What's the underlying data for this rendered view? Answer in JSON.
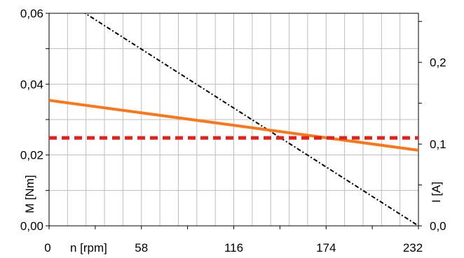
{
  "chart_data": {
    "type": "line",
    "x_axis": {
      "label": "n [rpm]",
      "range": [
        0,
        232
      ],
      "ticks": [
        0,
        58,
        116,
        174,
        232
      ],
      "tick_labels": [
        "0",
        "58",
        "116",
        "174",
        "232"
      ]
    },
    "y_left": {
      "label": "M [Nm]",
      "range": [
        0,
        0.06
      ],
      "ticks": [
        0,
        0.02,
        0.04,
        0.06
      ],
      "tick_labels": [
        "0,00",
        "0,02",
        "0,04",
        "0,06"
      ]
    },
    "y_right": {
      "label": "I [A]",
      "range": [
        0,
        0.26
      ],
      "ticks": [
        0,
        0.1,
        0.2
      ],
      "tick_labels": [
        "0,0",
        "0,1",
        "0,2"
      ]
    },
    "grid": true,
    "series": [
      {
        "axis": "left",
        "style": "dash-dot",
        "color": "#000000",
        "x": [
          0,
          232
        ],
        "y": [
          0.0665,
          0.0
        ]
      },
      {
        "axis": "right",
        "style": "solid",
        "color": "#ff7518",
        "x": [
          0,
          232
        ],
        "y": [
          0.1535,
          0.0925
        ]
      },
      {
        "axis": "right",
        "style": "dashed",
        "color": "#e4211c",
        "x": [
          0,
          232
        ],
        "y": [
          0.1075,
          0.1075
        ]
      }
    ]
  }
}
